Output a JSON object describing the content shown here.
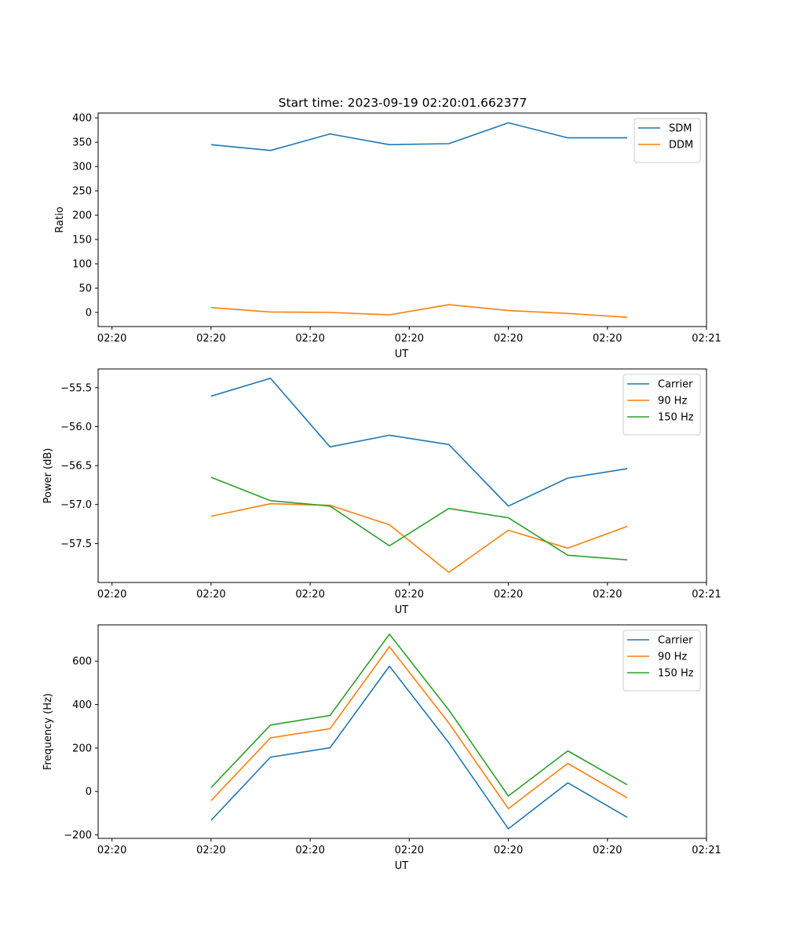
{
  "figure_title": "Start time: 2023-09-19 02:20:01.662377",
  "colors": {
    "blue": "#1f77b4",
    "orange": "#ff7f0e",
    "green": "#2ca02c"
  },
  "x_ticks": [
    "02:20",
    "02:20",
    "02:20",
    "02:20",
    "02:20",
    "02:20",
    "02:21"
  ],
  "chart_data": [
    {
      "id": "ratio",
      "type": "line",
      "title": "Start time: 2023-09-19 02:20:01.662377",
      "xlabel": "UT",
      "ylabel": "Ratio",
      "x": [
        1.0,
        1.6,
        2.2,
        2.8,
        3.4,
        4.0,
        4.6,
        5.2
      ],
      "xlim": [
        -0.14,
        6.0
      ],
      "ylim": [
        -29,
        410
      ],
      "yticks": [
        0,
        50,
        100,
        150,
        200,
        250,
        300,
        350,
        400
      ],
      "ytick_labels": [
        "0",
        "50",
        "100",
        "150",
        "200",
        "250",
        "300",
        "350",
        "400"
      ],
      "legend": "top-right",
      "series": [
        {
          "name": "SDM",
          "color": "#1f77b4",
          "values": [
            345,
            333,
            367,
            345,
            347,
            390,
            359,
            359
          ]
        },
        {
          "name": "DDM",
          "color": "#ff7f0e",
          "values": [
            10,
            1,
            0,
            -5,
            16,
            4,
            -2,
            -10
          ]
        }
      ]
    },
    {
      "id": "power",
      "type": "line",
      "xlabel": "UT",
      "ylabel": "Power (dB)",
      "x": [
        1.0,
        1.6,
        2.2,
        2.8,
        3.4,
        4.0,
        4.6,
        5.2
      ],
      "xlim": [
        -0.14,
        6.0
      ],
      "ylim": [
        -58.0,
        -55.26
      ],
      "yticks": [
        -57.5,
        -57.0,
        -56.5,
        -56.0,
        -55.5
      ],
      "ytick_labels": [
        "−57.5",
        "−57.0",
        "−56.5",
        "−56.0",
        "−55.5"
      ],
      "legend": "top-right",
      "series": [
        {
          "name": "Carrier",
          "color": "#1f77b4",
          "values": [
            -55.61,
            -55.38,
            -56.26,
            -56.11,
            -56.23,
            -57.02,
            -56.66,
            -56.54
          ]
        },
        {
          "name": "90 Hz",
          "color": "#ff7f0e",
          "values": [
            -57.15,
            -56.99,
            -57.01,
            -57.26,
            -57.87,
            -57.33,
            -57.56,
            -57.28
          ]
        },
        {
          "name": "150 Hz",
          "color": "#2ca02c",
          "values": [
            -56.65,
            -56.95,
            -57.02,
            -57.53,
            -57.05,
            -57.17,
            -57.65,
            -57.71
          ]
        }
      ]
    },
    {
      "id": "frequency",
      "type": "line",
      "xlabel": "UT",
      "ylabel": "Frequency (Hz)",
      "x": [
        1.0,
        1.6,
        2.2,
        2.8,
        3.4,
        4.0,
        4.6,
        5.2
      ],
      "xlim": [
        -0.14,
        6.0
      ],
      "ylim": [
        -216,
        767
      ],
      "yticks": [
        -200,
        0,
        200,
        400,
        600
      ],
      "ytick_labels": [
        "−200",
        "0",
        "200",
        "400",
        "600"
      ],
      "legend": "top-right",
      "series": [
        {
          "name": "Carrier",
          "color": "#1f77b4",
          "values": [
            -133,
            158,
            201,
            577,
            224,
            -172,
            40,
            -119
          ]
        },
        {
          "name": "90 Hz",
          "color": "#ff7f0e",
          "values": [
            -42,
            247,
            289,
            666,
            315,
            -79,
            129,
            -29
          ]
        },
        {
          "name": "150 Hz",
          "color": "#2ca02c",
          "values": [
            18,
            306,
            350,
            724,
            375,
            -21,
            187,
            31
          ]
        }
      ]
    }
  ]
}
